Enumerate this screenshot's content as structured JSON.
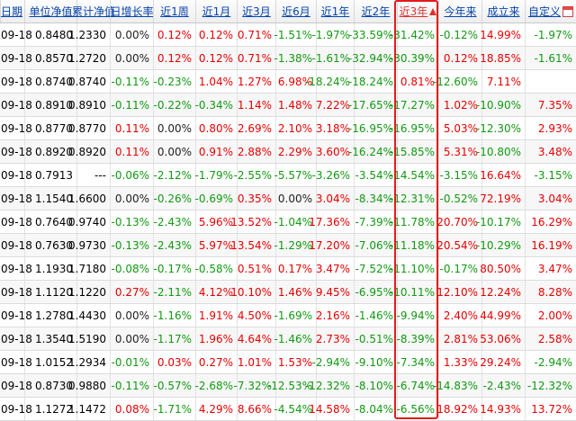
{
  "headers": [
    "日期",
    "单位净值",
    "累计净值",
    "日增长率",
    "近1周",
    "近1月",
    "近3月",
    "近6月",
    "近1年",
    "近2年",
    "近3年",
    "今年来",
    "成立来",
    "自定义"
  ],
  "sorted_column_index": 10,
  "colors": {
    "positive": "#e60000",
    "negative": "#119911",
    "highlight_border": "#e21b1b",
    "link": "#0645ad"
  },
  "rows": [
    [
      "09-18",
      "0.8480",
      "1.2330",
      "0.00%",
      "0.12%",
      "0.12%",
      "0.71%",
      "-1.51%",
      "-1.97%",
      "-33.59%",
      "-31.42%",
      "-0.12%",
      "14.99%",
      "-1.97%"
    ],
    [
      "09-18",
      "0.8570",
      "1.2720",
      "0.00%",
      "0.12%",
      "0.12%",
      "0.71%",
      "-1.38%",
      "-1.61%",
      "-32.94%",
      "-30.39%",
      "0.12%",
      "18.85%",
      "-1.61%"
    ],
    [
      "09-18",
      "0.8740",
      "0.8740",
      "-0.11%",
      "-0.23%",
      "1.04%",
      "1.27%",
      "6.98%",
      "-18.24%",
      "-18.24%",
      "0.81%",
      "-12.60%",
      "7.11%",
      ""
    ],
    [
      "09-18",
      "0.8910",
      "0.8910",
      "-0.11%",
      "-0.22%",
      "-0.34%",
      "1.14%",
      "1.48%",
      "7.22%",
      "-17.65%",
      "-17.27%",
      "1.02%",
      "-10.90%",
      "7.35%"
    ],
    [
      "09-18",
      "0.8770",
      "0.8770",
      "0.11%",
      "0.00%",
      "0.80%",
      "2.69%",
      "2.10%",
      "3.18%",
      "-16.95%",
      "-16.95%",
      "5.03%",
      "-12.30%",
      "2.93%"
    ],
    [
      "09-18",
      "0.8920",
      "0.8920",
      "0.11%",
      "0.00%",
      "0.91%",
      "2.88%",
      "2.29%",
      "3.60%",
      "-16.24%",
      "-15.85%",
      "5.31%",
      "-10.80%",
      "3.48%"
    ],
    [
      "09-18",
      "0.7913",
      "---",
      "-0.06%",
      "-2.12%",
      "-1.79%",
      "-2.55%",
      "-5.57%",
      "-3.26%",
      "-3.54%",
      "-14.54%",
      "-3.15%",
      "16.64%",
      "-3.15%"
    ],
    [
      "09-18",
      "1.1540",
      "1.6600",
      "0.00%",
      "-0.26%",
      "-0.69%",
      "0.35%",
      "0.00%",
      "3.04%",
      "-8.34%",
      "-12.31%",
      "-0.52%",
      "72.19%",
      "3.04%"
    ],
    [
      "09-18",
      "0.7640",
      "0.9740",
      "-0.13%",
      "-2.43%",
      "5.96%",
      "13.52%",
      "-1.04%",
      "17.36%",
      "-7.39%",
      "-11.78%",
      "20.70%",
      "-10.17%",
      "16.29%"
    ],
    [
      "09-18",
      "0.7630",
      "0.9730",
      "-0.13%",
      "-2.43%",
      "5.97%",
      "13.54%",
      "-1.29%",
      "17.20%",
      "-7.06%",
      "-11.18%",
      "20.54%",
      "-10.29%",
      "16.19%"
    ],
    [
      "09-18",
      "1.1930",
      "1.7180",
      "-0.08%",
      "-0.17%",
      "-0.58%",
      "0.51%",
      "0.17%",
      "3.47%",
      "-7.52%",
      "-11.10%",
      "-0.17%",
      "80.50%",
      "3.47%"
    ],
    [
      "09-18",
      "1.1120",
      "1.1220",
      "0.27%",
      "-2.11%",
      "4.12%",
      "10.10%",
      "1.46%",
      "9.45%",
      "-6.95%",
      "-10.11%",
      "12.10%",
      "12.24%",
      "8.28%"
    ],
    [
      "09-18",
      "1.2780",
      "1.4430",
      "0.00%",
      "-1.16%",
      "1.91%",
      "4.50%",
      "-1.69%",
      "2.16%",
      "-1.46%",
      "-9.94%",
      "2.40%",
      "44.99%",
      "2.00%"
    ],
    [
      "09-18",
      "1.3540",
      "1.5190",
      "0.00%",
      "-1.17%",
      "1.96%",
      "4.64%",
      "-1.46%",
      "2.73%",
      "-0.51%",
      "-8.39%",
      "2.81%",
      "53.06%",
      "2.58%"
    ],
    [
      "09-18",
      "1.0152",
      "1.2934",
      "-0.01%",
      "0.03%",
      "0.27%",
      "1.01%",
      "1.53%",
      "-2.94%",
      "-9.10%",
      "-7.34%",
      "1.33%",
      "29.24%",
      "-2.94%"
    ],
    [
      "09-18",
      "0.8730",
      "0.9880",
      "-0.11%",
      "-0.57%",
      "-2.68%",
      "-7.32%",
      "-12.53%",
      "-12.32%",
      "-8.10%",
      "-6.74%",
      "-14.83%",
      "-2.43%",
      "-12.32%"
    ],
    [
      "09-18",
      "1.1272",
      "1.1472",
      "0.08%",
      "-1.71%",
      "4.29%",
      "8.66%",
      "-4.54%",
      "14.58%",
      "-8.04%",
      "-6.56%",
      "18.92%",
      "14.93%",
      "13.72%"
    ]
  ]
}
